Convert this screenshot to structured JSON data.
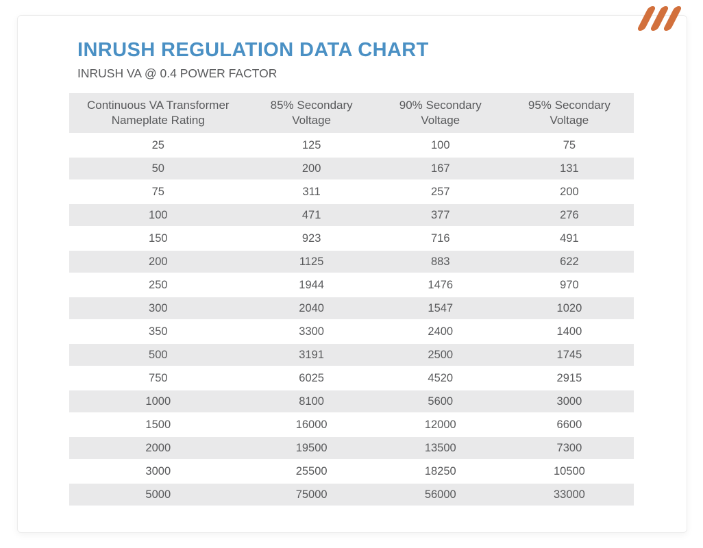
{
  "page": {
    "title": "INRUSH REGULATION DATA CHART",
    "subtitle": "INRUSH VA @ 0.4 POWER FACTOR"
  },
  "logo": {
    "description": "three diagonal orange slashes",
    "color": "#d2703c"
  },
  "theme": {
    "title_blue": "#4a90c4",
    "text_gray": "#58595b",
    "stripe_gray": "#e9e9ea",
    "logo_orange": "#d2703c"
  },
  "chart_data": {
    "type": "table",
    "title": "INRUSH REGULATION DATA CHART",
    "subtitle": "INRUSH VA @ 0.4 POWER FACTOR",
    "columns": [
      "Continuous VA Transformer Nameplate Rating",
      "85% Secondary Voltage",
      "90% Secondary Voltage",
      "95% Secondary Voltage"
    ],
    "rows": [
      [
        25,
        125,
        100,
        75
      ],
      [
        50,
        200,
        167,
        131
      ],
      [
        75,
        311,
        257,
        200
      ],
      [
        100,
        471,
        377,
        276
      ],
      [
        150,
        923,
        716,
        491
      ],
      [
        200,
        1125,
        883,
        622
      ],
      [
        250,
        1944,
        1476,
        970
      ],
      [
        300,
        2040,
        1547,
        1020
      ],
      [
        350,
        3300,
        2400,
        1400
      ],
      [
        500,
        3191,
        2500,
        1745
      ],
      [
        750,
        6025,
        4520,
        2915
      ],
      [
        1000,
        8100,
        5600,
        3000
      ],
      [
        1500,
        16000,
        12000,
        6600
      ],
      [
        2000,
        19500,
        13500,
        7300
      ],
      [
        3000,
        25500,
        18250,
        10500
      ],
      [
        5000,
        75000,
        56000,
        33000
      ]
    ],
    "layout": {
      "striped_rows": "even rows shaded light gray",
      "alignment": "all cells centered",
      "header_background": "#e9e9ea"
    }
  }
}
